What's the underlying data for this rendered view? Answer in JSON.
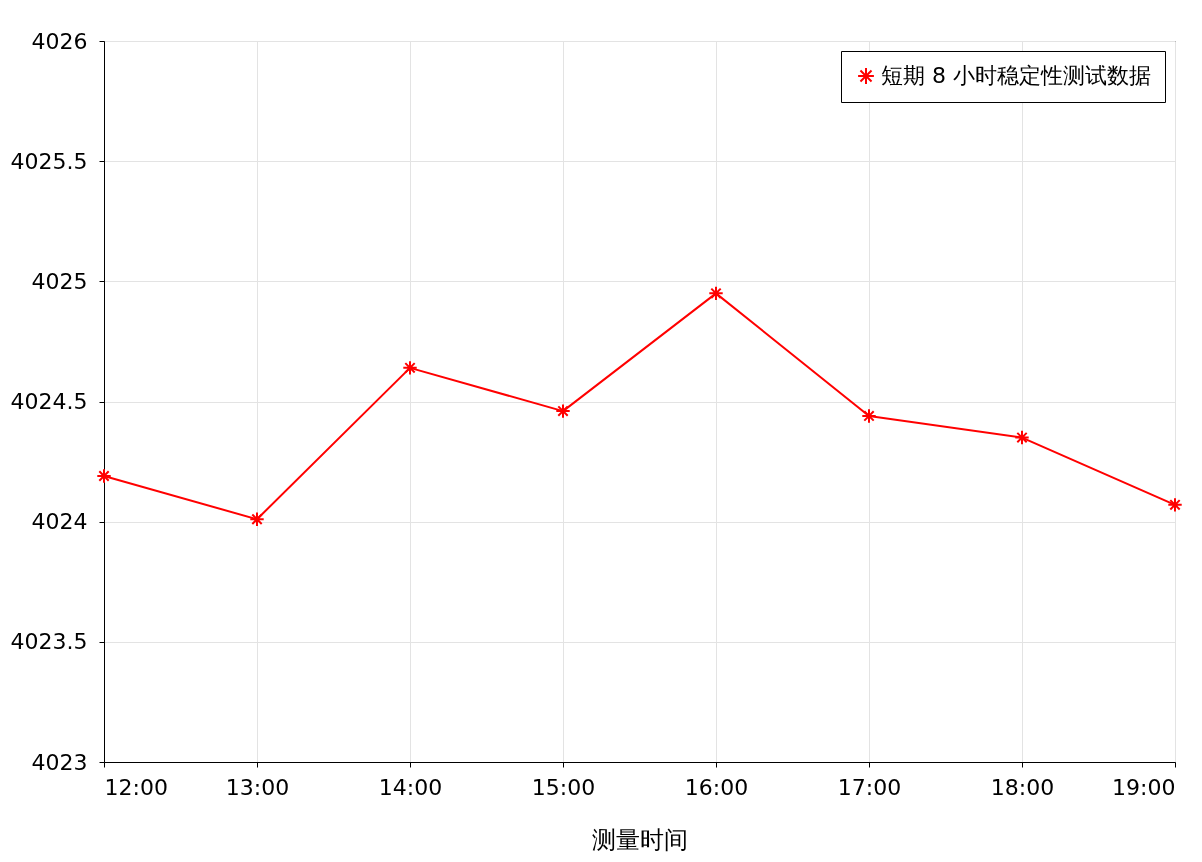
{
  "chart_data": {
    "type": "line",
    "xlabel": "测量时间",
    "x": [
      12,
      13,
      14,
      15,
      16,
      17,
      18,
      19
    ],
    "series": [
      {
        "name": "短期 8 小时稳定性测试数据",
        "color": "#ff0000",
        "values": [
          4024.19,
          4024.01,
          4024.64,
          4024.46,
          4024.95,
          4024.44,
          4024.35,
          4024.07
        ]
      }
    ],
    "xlim": [
      12,
      19
    ],
    "xticks": [
      {
        "value": 12,
        "label": "12:00"
      },
      {
        "value": 13,
        "label": "13:00"
      },
      {
        "value": 14,
        "label": "14:00"
      },
      {
        "value": 15,
        "label": "15:00"
      },
      {
        "value": 16,
        "label": "16:00"
      },
      {
        "value": 17,
        "label": "17:00"
      },
      {
        "value": 18,
        "label": "18:00"
      },
      {
        "value": 19,
        "label": "19:00"
      }
    ],
    "ylim": [
      4023,
      4026
    ],
    "yticks": [
      4023,
      4023.5,
      4024,
      4024.5,
      4025,
      4025.5,
      4026
    ],
    "grid": true,
    "legend": "top right",
    "marker": "cross",
    "line_style": "solid"
  }
}
